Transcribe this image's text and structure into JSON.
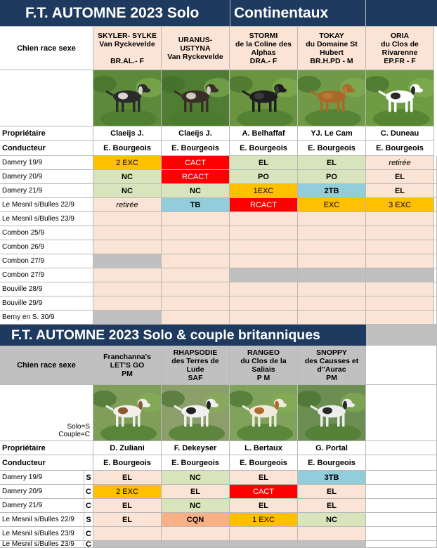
{
  "colors": {
    "header_bg": "#1f3a5f",
    "peach": "#fbe4d5",
    "gray": "#c0c0c0",
    "yellow": "#ffc000",
    "red": "#ff0000",
    "green": "#d8e4bc",
    "blue": "#92cddc",
    "orange": "#f8b084"
  },
  "section1": {
    "title": "F.T. AUTOMNE 2023 Solo",
    "subtitle": "Continentaux",
    "row_label_dog": "Chien race sexe",
    "row_label_owner": "Propriétaire",
    "row_label_handler": "Conducteur",
    "dogs": [
      {
        "name": "SKYLER- SYLKE\nVan Ryckevelde\n\nBR.AL.- F",
        "owner": "Claeijs J.",
        "handler": "E. Bourgeois",
        "photo": "dog-photo-skyler"
      },
      {
        "name": "URANUS-\nUSTYNA\nVan Ryckevelde",
        "owner": "Claeijs J.",
        "handler": "E. Bourgeois",
        "photo": "dog-photo-uranus"
      },
      {
        "name": "STORMI\nde la Coline des\nAlphas\nDRA.- F",
        "owner": "A. Belhaffaf",
        "handler": "E. Bourgeois",
        "photo": "dog-photo-stormi"
      },
      {
        "name": "TOKAY\ndu Domaine St\nHubert\nBR.H.PD - M",
        "owner": "YJ. Le Cam",
        "handler": "E. Bourgeois",
        "photo": "dog-photo-tokay"
      },
      {
        "name": "ORIA\ndu Clos de\nRivarenne\nEP.FR - F",
        "owner": "C. Duneau",
        "handler": "E. Bourgeois",
        "photo": "dog-photo-oria"
      }
    ],
    "events": [
      {
        "label": "Damery 19/9",
        "results": [
          [
            "2 EXC",
            "yellow"
          ],
          [
            "CACT",
            "red"
          ],
          [
            "EL",
            "green"
          ],
          [
            "EL",
            "green"
          ],
          [
            "retirée",
            "peach-i"
          ]
        ]
      },
      {
        "label": "Damery 20/9",
        "results": [
          [
            "NC",
            "green"
          ],
          [
            "RCACT",
            "red"
          ],
          [
            "PO",
            "green"
          ],
          [
            "PO",
            "green"
          ],
          [
            "EL",
            "peach"
          ]
        ]
      },
      {
        "label": "Damery 21/9",
        "results": [
          [
            "NC",
            "green"
          ],
          [
            "NC",
            "green"
          ],
          [
            "1EXC",
            "yellow"
          ],
          [
            "2TB",
            "blue"
          ],
          [
            "EL",
            "peach"
          ]
        ]
      },
      {
        "label": "Le Mesnil s/Bulles 22/9",
        "results": [
          [
            "retirée",
            "peach-i"
          ],
          [
            "TB",
            "blue"
          ],
          [
            "RCACT",
            "red"
          ],
          [
            "EXC",
            "yellow"
          ],
          [
            "3 EXC",
            "yellow"
          ]
        ]
      },
      {
        "label": "Le Mesnil s/Bulles 23/9",
        "results": [
          [
            "",
            "peach"
          ],
          [
            "",
            "peach"
          ],
          [
            "",
            "peach"
          ],
          [
            "",
            "peach"
          ],
          [
            "",
            "peach"
          ]
        ]
      },
      {
        "label": "Combon 25/9",
        "results": [
          [
            "",
            "peach"
          ],
          [
            "",
            "peach"
          ],
          [
            "",
            "peach"
          ],
          [
            "",
            "peach"
          ],
          [
            "",
            "peach"
          ]
        ]
      },
      {
        "label": "Combon 26/9",
        "results": [
          [
            "",
            "peach"
          ],
          [
            "",
            "peach"
          ],
          [
            "",
            "peach"
          ],
          [
            "",
            "peach"
          ],
          [
            "",
            "peach"
          ]
        ]
      },
      {
        "label": "Combon 27/9",
        "results": [
          [
            "",
            "gray"
          ],
          [
            "",
            "peach"
          ],
          [
            "",
            "peach"
          ],
          [
            "",
            "peach"
          ],
          [
            "",
            "peach"
          ]
        ]
      },
      {
        "label": "Combon 27/9",
        "results": [
          [
            "",
            "peach"
          ],
          [
            "",
            "peach"
          ],
          [
            "",
            "gray"
          ],
          [
            "",
            "gray"
          ],
          [
            "",
            "gray"
          ]
        ]
      },
      {
        "label": "Bouville 28/9",
        "results": [
          [
            "",
            "peach"
          ],
          [
            "",
            "peach"
          ],
          [
            "",
            "peach"
          ],
          [
            "",
            "peach"
          ],
          [
            "",
            "peach"
          ]
        ]
      },
      {
        "label": "Bouville 29/9",
        "results": [
          [
            "",
            "peach"
          ],
          [
            "",
            "peach"
          ],
          [
            "",
            "peach"
          ],
          [
            "",
            "peach"
          ],
          [
            "",
            "peach"
          ]
        ]
      },
      {
        "label": "Berny en S. 30/9",
        "results": [
          [
            "",
            "gray"
          ],
          [
            "",
            "peach"
          ],
          [
            "",
            "peach"
          ],
          [
            "",
            "peach"
          ],
          [
            "",
            "peach"
          ]
        ]
      }
    ]
  },
  "section2": {
    "title": "F.T. AUTOMNE 2023  Solo & couple britanniques",
    "row_label_dog": "Chien race sexe",
    "legend_solo": "Solo=S",
    "legend_couple": "Couple=C",
    "row_label_owner": "Propriétaire",
    "row_label_handler": "Conducteur",
    "dogs": [
      {
        "name": "Franchanna's\nLET'S GO\nPM",
        "owner": "D. Zuliani",
        "handler": "E. Bourgeois",
        "photo": "dog-photo-letsgo"
      },
      {
        "name": "RHAPSODIE\ndes Terres de\nLude\nSAF",
        "owner": "F. Dekeyser",
        "handler": "E. Bourgeois",
        "photo": "dog-photo-rhapsodie"
      },
      {
        "name": "RANGEO\ndu Clos de la\nSaliais\nP M",
        "owner": "L. Bertaux",
        "handler": "E. Bourgeois",
        "photo": "dog-photo-rangeo"
      },
      {
        "name": "SNOPPY\ndes Causses et\nd\"Aurac\nPM",
        "owner": "G. Portal",
        "handler": "E. Bourgeois",
        "photo": "dog-photo-snoppy"
      }
    ],
    "events": [
      {
        "label": "Damery 19/9",
        "mode": "S",
        "results": [
          [
            "EL",
            "peach"
          ],
          [
            "NC",
            "green"
          ],
          [
            "EL",
            "peach"
          ],
          [
            "3TB",
            "blue"
          ]
        ]
      },
      {
        "label": "Damery 20/9",
        "mode": "C",
        "results": [
          [
            "2 EXC",
            "yellow"
          ],
          [
            "EL",
            "peach"
          ],
          [
            "CACT",
            "red"
          ],
          [
            "EL",
            "peach"
          ]
        ]
      },
      {
        "label": "Damery 21/9",
        "mode": "C",
        "results": [
          [
            "EL",
            "peach"
          ],
          [
            "NC",
            "green"
          ],
          [
            "EL",
            "peach"
          ],
          [
            "EL",
            "peach"
          ]
        ]
      },
      {
        "label": "Le Mesnil s/Bulles 22/9",
        "mode": "S",
        "results": [
          [
            "EL",
            "peach"
          ],
          [
            "CQN",
            "orange"
          ],
          [
            "1 EXC",
            "yellow"
          ],
          [
            "NC",
            "green"
          ]
        ]
      },
      {
        "label": "Le Mesnil s/Bulles 23/9",
        "mode": "C",
        "results": [
          [
            "",
            "peach"
          ],
          [
            "",
            "peach"
          ],
          [
            "",
            "peach"
          ],
          [
            "",
            "peach"
          ]
        ]
      },
      {
        "label": "Le Mesnil s/Bulles 23/9",
        "mode": "C",
        "results": [
          [
            "",
            "gray"
          ],
          [
            "",
            "gray"
          ],
          [
            "",
            "gray"
          ],
          [
            "",
            "gray"
          ]
        ]
      }
    ]
  }
}
